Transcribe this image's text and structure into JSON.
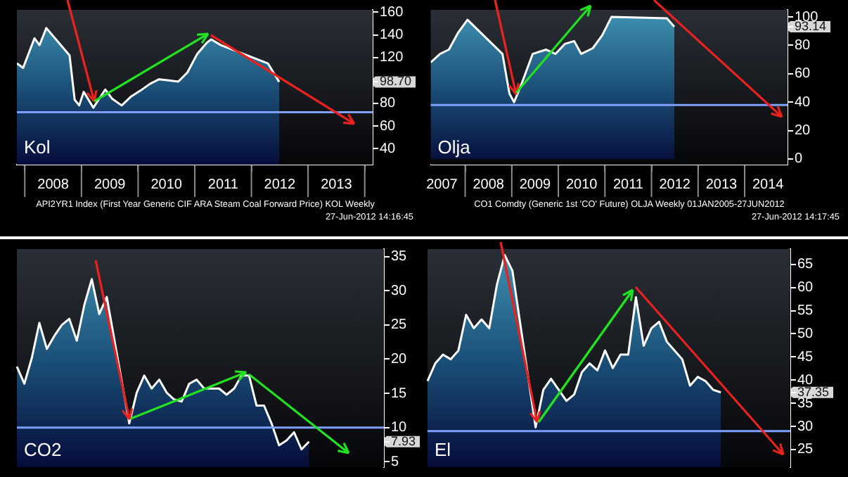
{
  "chart_data": [
    {
      "type": "area",
      "title": "Kol",
      "color": "#ffffff",
      "annotations": [
        "API2YR1 Index (First Year Generic CIF ARA Steam Coal Forward Price) KOL  Weekly",
        "27-Jun-2012 14:16:45"
      ],
      "x": [
        2007.86,
        2007.97,
        2008.17,
        2008.26,
        2008.38,
        2008.51,
        2008.71,
        2008.79,
        2008.88,
        2008.96,
        2009.04,
        2009.21,
        2009.42,
        2009.54,
        2009.71,
        2009.88,
        2010.04,
        2010.21,
        2010.37,
        2010.54,
        2010.71,
        2010.87,
        2011.04,
        2011.21,
        2011.29,
        2011.46,
        2011.62,
        2011.79,
        2011.96,
        2012.12,
        2012.29,
        2012.37,
        2012.49
      ],
      "values": [
        115,
        111,
        137,
        131,
        146,
        null,
        null,
        122,
        83,
        78,
        90,
        76,
        92,
        84,
        78,
        86,
        91,
        97,
        101,
        100,
        99,
        107,
        123,
        133,
        136,
        131,
        null,
        null,
        null,
        null,
        115,
        null,
        98.7
      ],
      "xlim": [
        2007.86,
        2014.14
      ],
      "xticks": [
        {
          "value": 2008,
          "label": null
        },
        {
          "value": 2008.5,
          "label": "2008"
        },
        {
          "value": 2009,
          "label": null
        },
        {
          "value": 2009.5,
          "label": "2009"
        },
        {
          "value": 2010,
          "label": null
        },
        {
          "value": 2010.5,
          "label": "2010"
        },
        {
          "value": 2011,
          "label": null
        },
        {
          "value": 2011.5,
          "label": "2011"
        },
        {
          "value": 2012,
          "label": null
        },
        {
          "value": 2012.5,
          "label": "2012"
        },
        {
          "value": 2013,
          "label": null
        },
        {
          "value": 2013.5,
          "label": "2013"
        },
        {
          "value": 2014,
          "label": null
        }
      ],
      "ylim": [
        26,
        162
      ],
      "yticks": [
        40,
        60,
        80,
        {
          "value": 98.7,
          "label": "98.70"
        },
        120,
        140,
        160
      ],
      "ref_lines": [
        {
          "axis": "y",
          "value": 72,
          "color": "#7f9fff"
        }
      ]
    },
    {
      "type": "area",
      "title": "Olja",
      "color": "#ffffff",
      "annotations": [
        "CO1 Comdty (Generic 1st 'CO' Future) OLJA  Weekly 01JAN2005-27JUN2012",
        "27-Jun-2012 14:17:45"
      ],
      "x": [
        2007.26,
        2007.46,
        2007.65,
        2007.85,
        2008.05,
        2008.25,
        2008.65,
        2008.8,
        2008.95,
        2009.05,
        2009.2,
        2009.45,
        2009.74,
        2009.94,
        2010.14,
        2010.34,
        2010.49,
        2010.74,
        2010.94,
        2011.14,
        2011.34,
        2011.73,
        2012.13,
        2012.33,
        2012.49
      ],
      "values": [
        68,
        74,
        77,
        89,
        98,
        null,
        null,
        74,
        46,
        40,
        52,
        74,
        77,
        74,
        81,
        83,
        74,
        78,
        87,
        100,
        null,
        null,
        null,
        99,
        93.14
      ],
      "xlim": [
        2007.26,
        2014.92
      ],
      "xticks": [
        {
          "value": 2007.5,
          "label": "2007"
        },
        {
          "value": 2008,
          "label": null
        },
        {
          "value": 2008.5,
          "label": "2008"
        },
        {
          "value": 2009,
          "label": null
        },
        {
          "value": 2009.5,
          "label": "2009"
        },
        {
          "value": 2010,
          "label": null
        },
        {
          "value": 2010.5,
          "label": "2010"
        },
        {
          "value": 2011,
          "label": null
        },
        {
          "value": 2011.5,
          "label": "2011"
        },
        {
          "value": 2012,
          "label": null
        },
        {
          "value": 2012.5,
          "label": "2012"
        },
        {
          "value": 2013,
          "label": null
        },
        {
          "value": 2013.5,
          "label": "2013"
        },
        {
          "value": 2014,
          "label": null
        },
        {
          "value": 2014.5,
          "label": "2014"
        }
      ],
      "ylim": [
        -4,
        105
      ],
      "yticks": [
        0,
        20,
        40,
        60,
        80,
        {
          "value": 93.14,
          "label": "93.14"
        },
        100
      ],
      "ref_lines": [
        {
          "axis": "y",
          "value": 38,
          "color": "#7f9fff"
        }
      ]
    },
    {
      "type": "area",
      "title": "CO2",
      "color": "#ffffff",
      "categories": [
        null,
        null,
        null,
        null,
        null,
        null,
        null,
        null,
        null,
        null,
        null,
        null,
        null,
        null,
        null,
        null,
        null,
        null,
        null,
        null,
        null,
        null,
        null,
        null,
        null,
        null,
        null,
        null,
        null,
        null,
        null,
        null,
        null,
        null,
        null,
        null,
        null,
        null,
        null,
        null,
        null,
        null,
        null,
        null,
        null,
        null,
        null,
        null,
        null,
        null
      ],
      "values": [
        18.9,
        16.4,
        20.2,
        25.3,
        21.5,
        23.4,
        25.0,
        25.9,
        22.7,
        27.9,
        31.7,
        26.6,
        29.1,
        null,
        null,
        10.6,
        15.1,
        17.6,
        15.7,
        17.0,
        15.1,
        14.1,
        13.8,
        16.4,
        17.0,
        15.7,
        null,
        15.7,
        14.8,
        15.7,
        17.6,
        17.6,
        13.2,
        13.2,
        10.6,
        7.4,
        8.1,
        9.3,
        6.8,
        7.93,
        null,
        null,
        null,
        null,
        null,
        null,
        null,
        null,
        null,
        null
      ],
      "ylim": [
        4.2,
        36.1
      ],
      "yticks": [
        5,
        {
          "value": 7.93,
          "label": "7.93"
        },
        10,
        15,
        20,
        25,
        30,
        35
      ],
      "tick_labels": "y",
      "ref_lines": [
        {
          "axis": "y",
          "value": 10,
          "color": "#7f9fff"
        }
      ]
    },
    {
      "type": "area",
      "title": "El",
      "color": "#ffffff",
      "categories": [
        null,
        null,
        null,
        null,
        null,
        null,
        null,
        null,
        null,
        null,
        null,
        null,
        null,
        null,
        null,
        null,
        null,
        null,
        null,
        null,
        null,
        null,
        null,
        null,
        null,
        null,
        null,
        null,
        null,
        null,
        null,
        null,
        null,
        null,
        null,
        null,
        null,
        null,
        null,
        null,
        null,
        null,
        null,
        null,
        null,
        null,
        null,
        null
      ],
      "values": [
        39.8,
        43.6,
        45.5,
        44.5,
        46.4,
        54.1,
        51.2,
        53.1,
        51.2,
        60.7,
        67,
        63.6,
        null,
        null,
        29.8,
        37.9,
        40.3,
        37.9,
        35.5,
        36.9,
        41.7,
        43.6,
        42.1,
        46.4,
        42.6,
        45.5,
        45.5,
        57.9,
        47.4,
        51.2,
        52.6,
        48.3,
        46.4,
        44.5,
        38.8,
        40.7,
        39.8,
        37.9,
        37.35,
        null,
        null,
        null,
        null,
        null,
        null,
        null,
        null,
        null
      ],
      "ylim": [
        21.2,
        68.3
      ],
      "yticks": [
        25,
        30,
        35,
        {
          "value": 37.35,
          "label": "37.35"
        },
        40,
        45,
        50,
        55,
        60,
        65
      ],
      "tick_labels": "y",
      "ref_lines": [
        {
          "axis": "y",
          "value": 29,
          "color": "#7f9fff"
        }
      ]
    }
  ]
}
